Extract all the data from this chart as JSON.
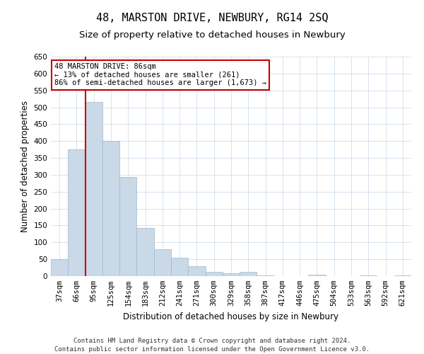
{
  "title": "48, MARSTON DRIVE, NEWBURY, RG14 2SQ",
  "subtitle": "Size of property relative to detached houses in Newbury",
  "xlabel": "Distribution of detached houses by size in Newbury",
  "ylabel": "Number of detached properties",
  "categories": [
    "37sqm",
    "66sqm",
    "95sqm",
    "125sqm",
    "154sqm",
    "183sqm",
    "212sqm",
    "241sqm",
    "271sqm",
    "300sqm",
    "329sqm",
    "358sqm",
    "387sqm",
    "417sqm",
    "446sqm",
    "475sqm",
    "504sqm",
    "533sqm",
    "563sqm",
    "592sqm",
    "621sqm"
  ],
  "values": [
    50,
    375,
    515,
    400,
    293,
    143,
    80,
    55,
    30,
    12,
    8,
    12,
    3,
    0,
    0,
    5,
    0,
    0,
    3,
    0,
    3
  ],
  "bar_color": "#c9d9e8",
  "bar_edgecolor": "#a0b8cc",
  "redline_index": 2,
  "ylim": [
    0,
    650
  ],
  "yticks": [
    0,
    50,
    100,
    150,
    200,
    250,
    300,
    350,
    400,
    450,
    500,
    550,
    600,
    650
  ],
  "annotation_title": "48 MARSTON DRIVE: 86sqm",
  "annotation_line1": "← 13% of detached houses are smaller (261)",
  "annotation_line2": "86% of semi-detached houses are larger (1,673) →",
  "annotation_box_color": "#ffffff",
  "annotation_border_color": "#cc0000",
  "footer1": "Contains HM Land Registry data © Crown copyright and database right 2024.",
  "footer2": "Contains public sector information licensed under the Open Government Licence v3.0.",
  "background_color": "#ffffff",
  "grid_color": "#c8d8e8",
  "title_fontsize": 11,
  "subtitle_fontsize": 9.5,
  "axis_label_fontsize": 8.5,
  "tick_fontsize": 7.5,
  "footer_fontsize": 6.5
}
